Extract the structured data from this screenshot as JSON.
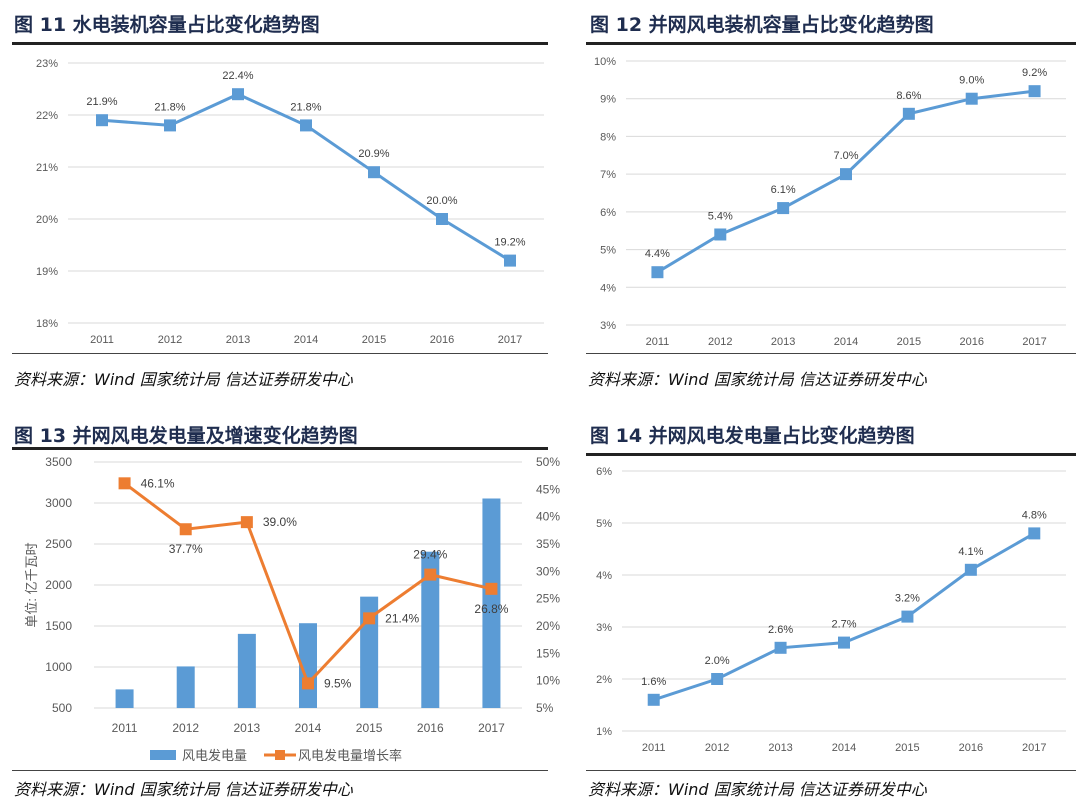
{
  "source_text": "资料来源：Wind 国家统计局  信达证券研发中心",
  "chart_data": [
    {
      "type": "line",
      "title": "图 11  水电装机容量占比变化趋势图",
      "categories": [
        "2011",
        "2012",
        "2013",
        "2014",
        "2015",
        "2016",
        "2017"
      ],
      "values": [
        21.9,
        21.8,
        22.4,
        21.8,
        20.9,
        20.0,
        19.2
      ],
      "labels": [
        "21.9%",
        "21.8%",
        "22.4%",
        "21.8%",
        "20.9%",
        "20.0%",
        "19.2%"
      ],
      "ylim": [
        18,
        23
      ],
      "yticks": [
        "18%",
        "19%",
        "20%",
        "21%",
        "22%",
        "23%"
      ],
      "color": "#5b9bd5",
      "grid": true
    },
    {
      "type": "line",
      "title": "图 12  并网风电装机容量占比变化趋势图",
      "categories": [
        "2011",
        "2012",
        "2013",
        "2014",
        "2015",
        "2016",
        "2017"
      ],
      "values": [
        4.4,
        5.4,
        6.1,
        7.0,
        8.6,
        9.0,
        9.2
      ],
      "labels": [
        "4.4%",
        "5.4%",
        "6.1%",
        "7.0%",
        "8.6%",
        "9.0%",
        "9.2%"
      ],
      "ylim": [
        3,
        10
      ],
      "yticks": [
        "3%",
        "4%",
        "5%",
        "6%",
        "7%",
        "8%",
        "9%",
        "10%"
      ],
      "color": "#5b9bd5",
      "grid": true
    },
    {
      "type": "bar+line",
      "title": "图 13  并网风电发电量及增速变化趋势图",
      "categories": [
        "2011",
        "2012",
        "2013",
        "2014",
        "2015",
        "2016",
        "2017"
      ],
      "ylabel": "单位: 亿千瓦时",
      "ylim": [
        500,
        3500
      ],
      "yticks": [
        "500",
        "1000",
        "1500",
        "2000",
        "2500",
        "3000",
        "3500"
      ],
      "y2lim": [
        5,
        50
      ],
      "y2ticks": [
        "5%",
        "10%",
        "15%",
        "20%",
        "25%",
        "30%",
        "35%",
        "40%",
        "45%",
        "50%"
      ],
      "series": [
        {
          "name": "风电发电量",
          "type": "bar",
          "color": "#5b9bd5",
          "values": [
            727,
            1007,
            1404,
            1534,
            1858,
            2406,
            3055
          ]
        },
        {
          "name": "风电发电量增长率",
          "type": "line",
          "color": "#ed7d31",
          "values": [
            46.1,
            37.7,
            39.0,
            9.5,
            21.4,
            29.4,
            26.8
          ],
          "labels": [
            "46.1%",
            "37.7%",
            "39.0%",
            "9.5%",
            "21.4%",
            "29.4%",
            "26.8%"
          ]
        }
      ],
      "legend": "bottom"
    },
    {
      "type": "line",
      "title": "图 14  并网风电发电量占比变化趋势图",
      "categories": [
        "2011",
        "2012",
        "2013",
        "2014",
        "2015",
        "2016",
        "2017"
      ],
      "values": [
        1.6,
        2.0,
        2.6,
        2.7,
        3.2,
        4.1,
        4.8
      ],
      "labels": [
        "1.6%",
        "2.0%",
        "2.6%",
        "2.7%",
        "3.2%",
        "4.1%",
        "4.8%"
      ],
      "ylim": [
        1,
        6
      ],
      "yticks": [
        "1%",
        "2%",
        "3%",
        "4%",
        "5%",
        "6%"
      ],
      "color": "#5b9bd5",
      "grid": true
    }
  ]
}
